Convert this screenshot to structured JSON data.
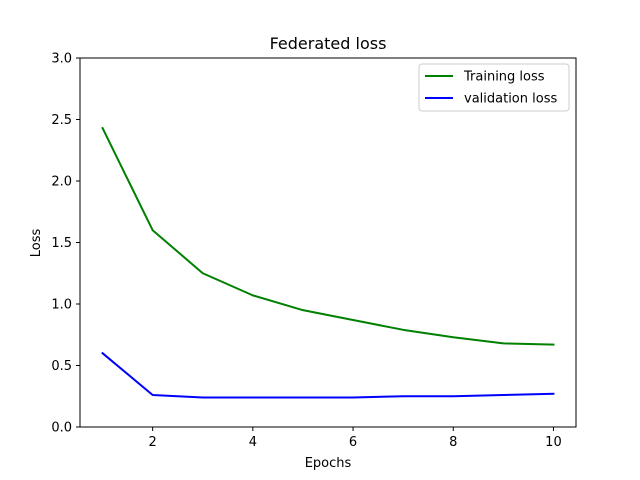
{
  "chart_data": {
    "type": "line",
    "title": "Federated loss",
    "xlabel": "Epochs",
    "ylabel": "Loss",
    "xlim": [
      0.55,
      10.45
    ],
    "ylim": [
      0,
      3.0
    ],
    "xticks": [
      2,
      4,
      6,
      8,
      10
    ],
    "yticks": [
      0.0,
      0.5,
      1.0,
      1.5,
      2.0,
      2.5,
      3.0
    ],
    "xtick_labels": [
      "2",
      "4",
      "6",
      "8",
      "10"
    ],
    "ytick_labels": [
      "0.0",
      "0.5",
      "1.0",
      "1.5",
      "2.0",
      "2.5",
      "3.0"
    ],
    "grid": false,
    "legend_position": "top-right",
    "x": [
      1,
      2,
      3,
      4,
      5,
      6,
      7,
      8,
      9,
      10
    ],
    "series": [
      {
        "name": "Training loss",
        "color": "#008000",
        "values": [
          2.43,
          1.6,
          1.25,
          1.07,
          0.95,
          0.87,
          0.79,
          0.73,
          0.68,
          0.67
        ]
      },
      {
        "name": "validation loss",
        "color": "#0000ff",
        "values": [
          0.6,
          0.26,
          0.24,
          0.24,
          0.24,
          0.24,
          0.25,
          0.25,
          0.26,
          0.27
        ]
      }
    ]
  }
}
